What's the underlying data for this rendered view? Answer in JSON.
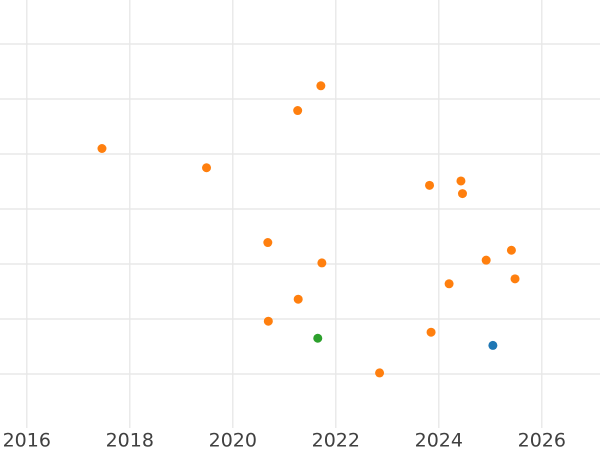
{
  "chart_data": {
    "type": "scatter",
    "title": "",
    "xlabel": "",
    "ylabel": "",
    "grid": true,
    "legend": false,
    "x_ticks": [
      2016,
      2018,
      2020,
      2022,
      2024,
      2026
    ],
    "x_tick_labels": [
      "2016",
      "2018",
      "2020",
      "2022",
      "2024",
      "2026"
    ],
    "xlim": [
      2015.48,
      2027.13
    ],
    "ylim": [
      0,
      7.8
    ],
    "y_gridlines": [
      1,
      2,
      3,
      4,
      5,
      6,
      7
    ],
    "y_axis_note": "y axis is unlabeled in the image; y values are estimated in gridline units (one unit per horizontal gridline, 0 at plot bottom)",
    "series": [
      {
        "name": "orange-points",
        "color": "#ff7f0e",
        "points": [
          {
            "x": 2017.46,
            "y": 5.1
          },
          {
            "x": 2019.49,
            "y": 4.75
          },
          {
            "x": 2020.68,
            "y": 3.39
          },
          {
            "x": 2020.69,
            "y": 1.96
          },
          {
            "x": 2021.26,
            "y": 5.79
          },
          {
            "x": 2021.27,
            "y": 2.36
          },
          {
            "x": 2021.71,
            "y": 6.24
          },
          {
            "x": 2021.73,
            "y": 3.02
          },
          {
            "x": 2022.85,
            "y": 1.02
          },
          {
            "x": 2023.82,
            "y": 4.43
          },
          {
            "x": 2023.85,
            "y": 1.76
          },
          {
            "x": 2024.2,
            "y": 2.64
          },
          {
            "x": 2024.43,
            "y": 4.51
          },
          {
            "x": 2024.46,
            "y": 4.28
          },
          {
            "x": 2024.92,
            "y": 3.07
          },
          {
            "x": 2025.41,
            "y": 3.25
          },
          {
            "x": 2025.48,
            "y": 2.73
          }
        ]
      },
      {
        "name": "green-points",
        "color": "#2ca02c",
        "points": [
          {
            "x": 2021.65,
            "y": 1.65
          }
        ]
      },
      {
        "name": "blue-points",
        "color": "#1f77b4",
        "points": [
          {
            "x": 2025.05,
            "y": 1.52
          }
        ]
      }
    ],
    "marker": {
      "radius_px": 4.5
    },
    "colors": {
      "background": "#ffffff",
      "grid": "#e8e8e8",
      "tick_label": "#404040"
    }
  }
}
